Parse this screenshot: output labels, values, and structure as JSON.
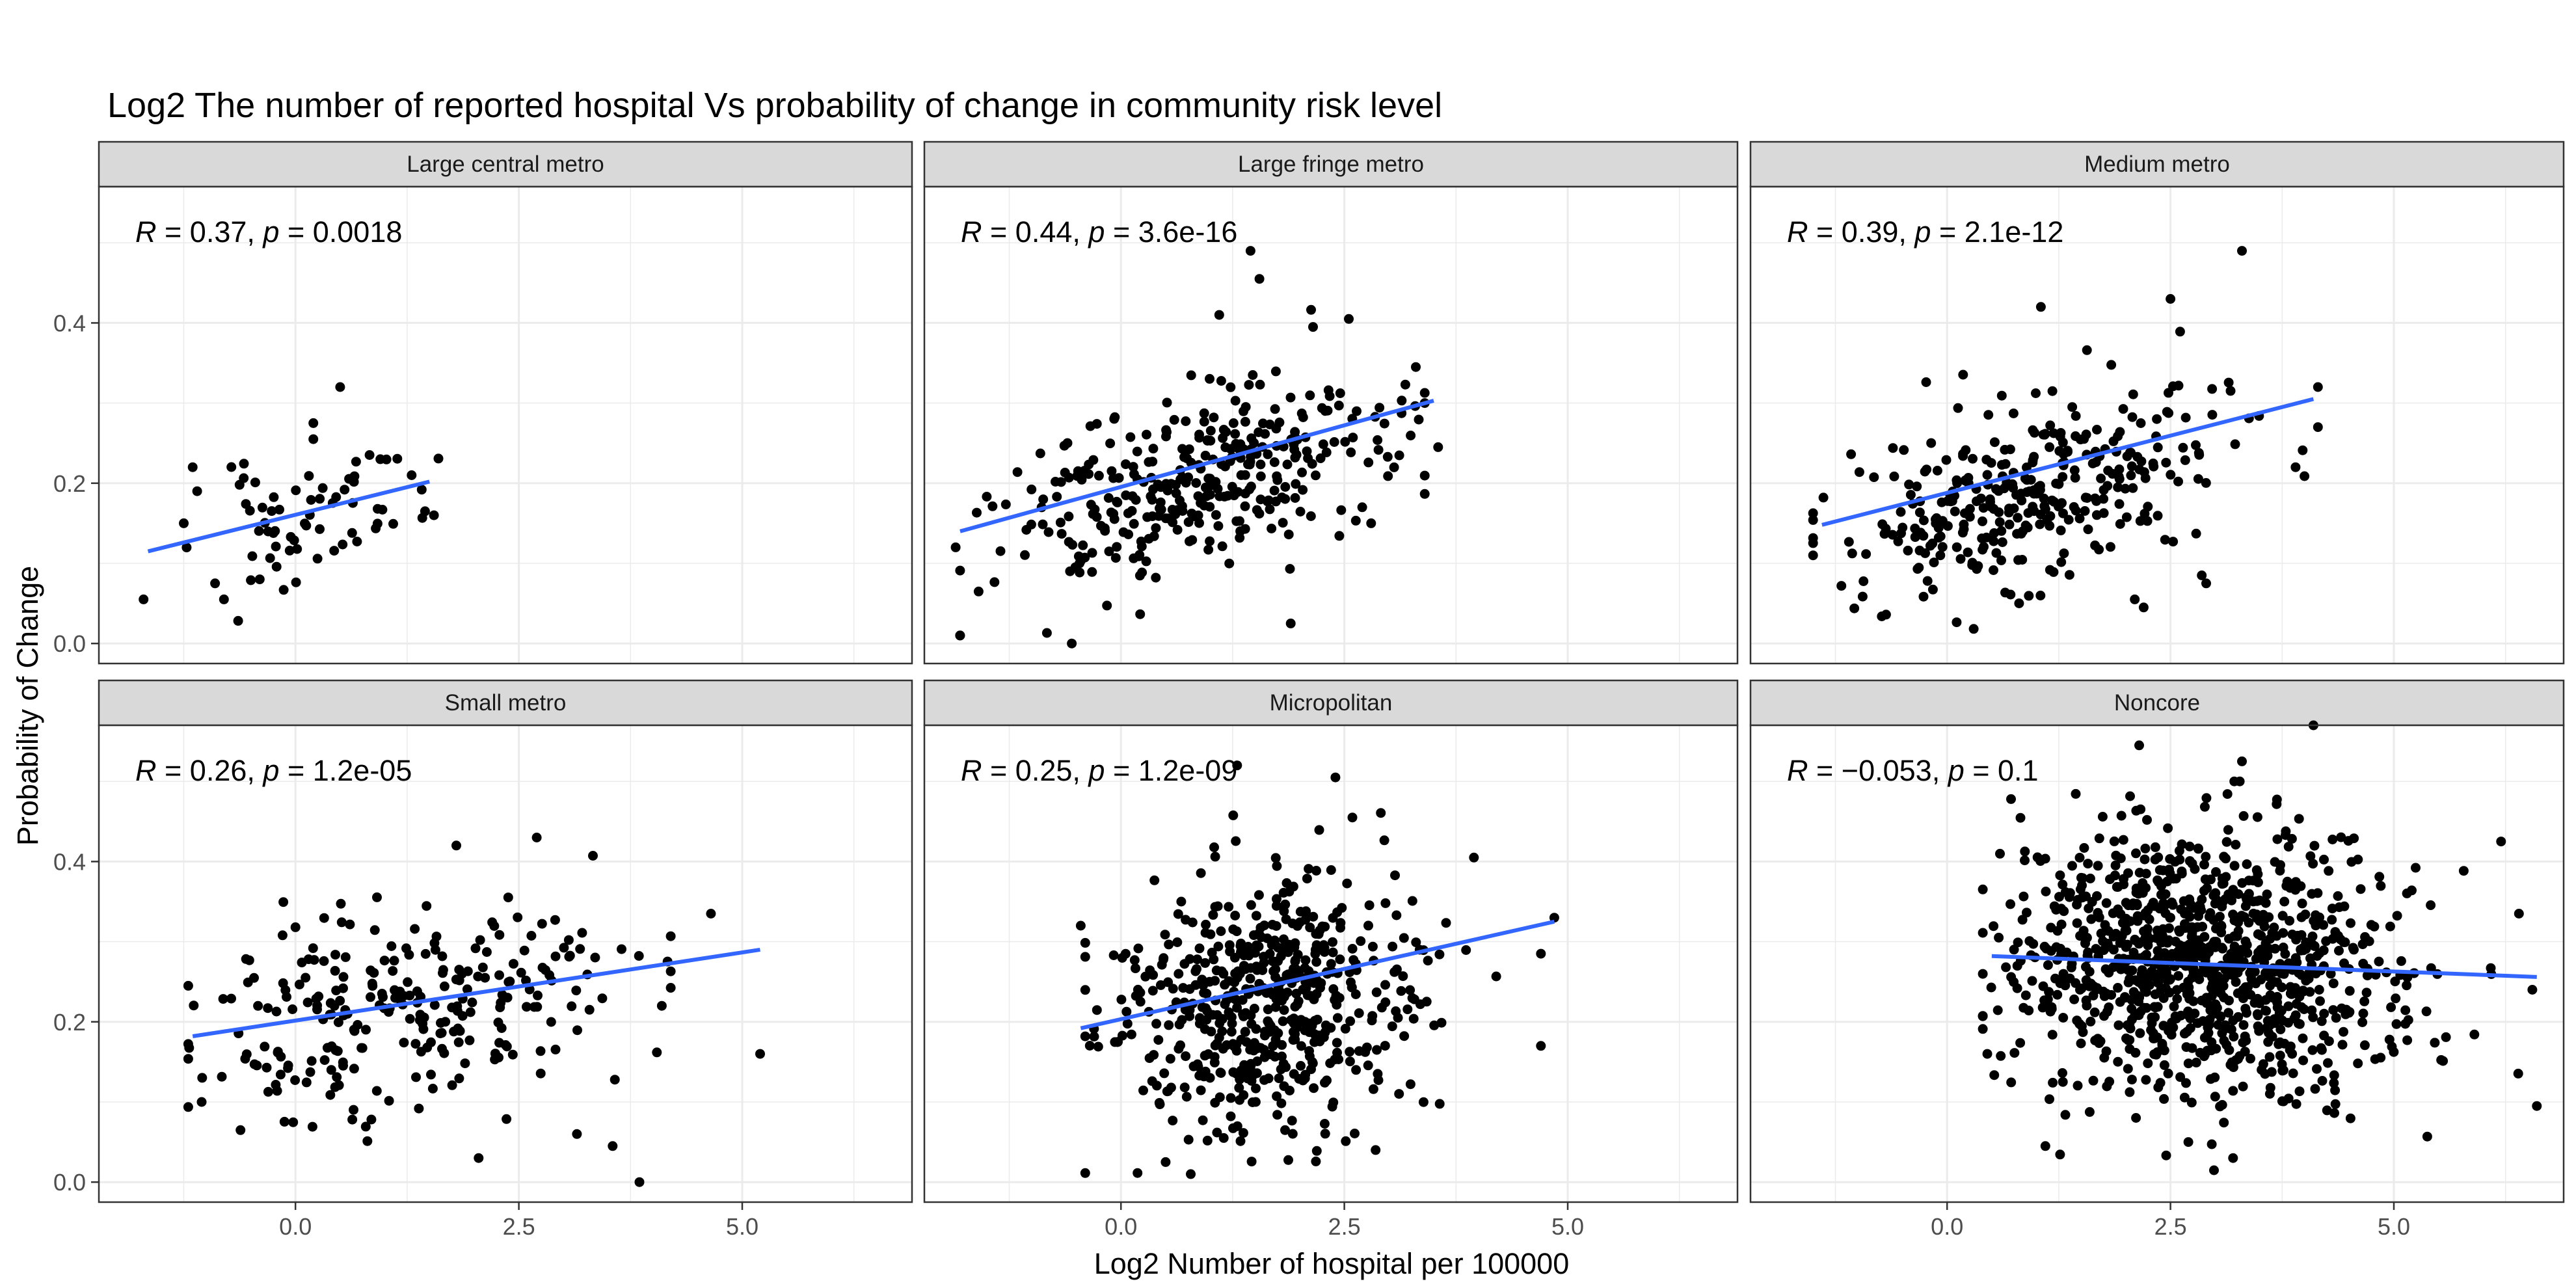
{
  "title": "Log2 The number of reported hospital Vs probability of change in community risk level",
  "xlabel": "Log2 Number of hospital per 100000",
  "ylabel": "Probability of Change",
  "colors": {
    "points": "#000000",
    "fit_line": "#3366FF",
    "strip_fill": "#D9D9D9",
    "grid": "#EBEBEB",
    "panel_border": "#333333"
  },
  "chart_data": {
    "type": "scatter",
    "layout": "facet grid 2 rows x 3 columns, shared axes",
    "xlim": [
      -2.2,
      6.9
    ],
    "ylim": [
      -0.025,
      0.57
    ],
    "x_ticks": [
      0.0,
      2.5,
      5.0
    ],
    "x_tick_labels": [
      "0.0",
      "2.5",
      "5.0"
    ],
    "y_ticks": [
      0.0,
      0.2,
      0.4
    ],
    "y_tick_labels": [
      "0.0",
      "0.2",
      "0.4"
    ],
    "grid": true,
    "panels": [
      {
        "name": "Large central metro",
        "stat_r": "0.37",
        "stat_p": "0.0018",
        "fit": {
          "x0": -1.65,
          "y0": 0.115,
          "x1": 1.5,
          "y1": 0.202
        },
        "cloud": {
          "n": 62,
          "x_mean": 0.2,
          "x_sd": 0.6,
          "x_min": -1.7,
          "x_max": 1.6,
          "y_intercept": 0.16,
          "slope": 0.028,
          "y_sd": 0.038,
          "seed": 11
        },
        "points": [
          [
            -1.7,
            0.055
          ],
          [
            -0.8,
            0.055
          ],
          [
            -0.9,
            0.075
          ],
          [
            -1.25,
            0.15
          ],
          [
            -1.15,
            0.22
          ],
          [
            -1.1,
            0.19
          ],
          [
            0.2,
            0.275
          ],
          [
            0.2,
            0.255
          ],
          [
            0.5,
            0.32
          ],
          [
            1.55,
            0.16
          ],
          [
            1.45,
            0.165
          ],
          [
            1.3,
            0.21
          ],
          [
            0.95,
            0.23
          ],
          [
            -0.4,
            0.08
          ]
        ]
      },
      {
        "name": "Large fringe metro",
        "stat_r": "0.44",
        "stat_p": "3.6e-16",
        "fit": {
          "x0": -1.8,
          "y0": 0.14,
          "x1": 3.5,
          "y1": 0.303
        },
        "cloud": {
          "n": 340,
          "x_mean": 0.8,
          "x_sd": 1.05,
          "x_min": -1.8,
          "x_max": 3.4,
          "y_intercept": 0.195,
          "slope": 0.031,
          "y_sd": 0.055,
          "seed": 23
        },
        "points": [
          [
            1.45,
            0.49
          ],
          [
            1.55,
            0.455
          ],
          [
            -0.55,
            0.0
          ],
          [
            1.9,
            0.025
          ],
          [
            3.55,
            0.245
          ],
          [
            3.4,
            0.3
          ],
          [
            3.3,
            0.345
          ],
          [
            2.55,
            0.405
          ],
          [
            2.15,
            0.395
          ],
          [
            1.1,
            0.41
          ],
          [
            -1.85,
            0.12
          ],
          [
            2.7,
            0.17
          ],
          [
            2.8,
            0.15
          ]
        ]
      },
      {
        "name": "Medium metro",
        "stat_r": "0.39",
        "stat_p": "2.1e-12",
        "fit": {
          "x0": -1.4,
          "y0": 0.148,
          "x1": 4.1,
          "y1": 0.305
        },
        "cloud": {
          "n": 330,
          "x_mean": 1.0,
          "x_sd": 1.05,
          "x_min": -1.5,
          "x_max": 4.0,
          "y_intercept": 0.19,
          "slope": 0.028,
          "y_sd": 0.055,
          "seed": 37
        },
        "points": [
          [
            3.3,
            0.49
          ],
          [
            -1.5,
            0.11
          ],
          [
            4.15,
            0.32
          ],
          [
            4.15,
            0.27
          ],
          [
            3.9,
            0.22
          ],
          [
            2.85,
            0.085
          ],
          [
            2.9,
            0.075
          ],
          [
            2.2,
            0.045
          ],
          [
            2.1,
            0.055
          ],
          [
            2.5,
            0.43
          ],
          [
            1.05,
            0.42
          ]
        ]
      },
      {
        "name": "Small metro",
        "stat_r": "0.26",
        "stat_p": "1.2e-05",
        "fit": {
          "x0": -1.15,
          "y0": 0.182,
          "x1": 5.2,
          "y1": 0.29
        },
        "cloud": {
          "n": 260,
          "x_mean": 1.1,
          "x_sd": 1.2,
          "x_min": -1.2,
          "x_max": 4.2,
          "y_intercept": 0.205,
          "slope": 0.017,
          "y_sd": 0.062,
          "seed": 51
        },
        "points": [
          [
            5.2,
            0.16
          ],
          [
            4.65,
            0.335
          ],
          [
            3.85,
            0.0
          ],
          [
            3.55,
            0.045
          ],
          [
            3.15,
            0.06
          ],
          [
            2.05,
            0.03
          ],
          [
            2.7,
            0.43
          ],
          [
            1.8,
            0.42
          ],
          [
            -1.2,
            0.245
          ],
          [
            -1.05,
            0.1
          ],
          [
            4.1,
            0.22
          ]
        ]
      },
      {
        "name": "Micropolitan",
        "stat_r": "0.25",
        "stat_p": "1.2e-09",
        "fit": {
          "x0": -0.45,
          "y0": 0.192,
          "x1": 4.85,
          "y1": 0.325
        },
        "cloud": {
          "n": 560,
          "x_mean": 1.6,
          "x_sd": 0.85,
          "x_min": -0.4,
          "x_max": 4.2,
          "y_intercept": 0.225,
          "slope": 0.018,
          "y_sd": 0.075,
          "seed": 67
        },
        "points": [
          [
            -0.45,
            0.32
          ],
          [
            4.85,
            0.33
          ],
          [
            4.7,
            0.17
          ],
          [
            4.7,
            0.285
          ],
          [
            3.95,
            0.405
          ],
          [
            0.5,
            0.025
          ],
          [
            1.15,
            0.055
          ],
          [
            2.4,
            0.505
          ],
          [
            1.3,
            0.52
          ],
          [
            2.85,
            0.04
          ]
        ]
      },
      {
        "name": "Noncore",
        "stat_r": "−0.053",
        "stat_p": "0.1",
        "fit": {
          "x0": 0.5,
          "y0": 0.282,
          "x1": 6.6,
          "y1": 0.256
        },
        "cloud": {
          "n": 1050,
          "x_mean": 2.85,
          "x_sd": 1.12,
          "x_min": 0.4,
          "x_max": 6.6,
          "y_intercept": 0.275,
          "slope": -0.004,
          "y_sd": 0.085,
          "seed": 83
        },
        "points": [
          [
            0.45,
            0.16
          ],
          [
            6.6,
            0.095
          ],
          [
            6.2,
            0.425
          ],
          [
            6.4,
            0.335
          ],
          [
            6.55,
            0.24
          ],
          [
            4.1,
            0.57
          ],
          [
            2.15,
            0.545
          ],
          [
            3.3,
            0.525
          ],
          [
            3.2,
            0.03
          ],
          [
            2.7,
            0.05
          ],
          [
            1.1,
            0.045
          ]
        ]
      }
    ]
  }
}
